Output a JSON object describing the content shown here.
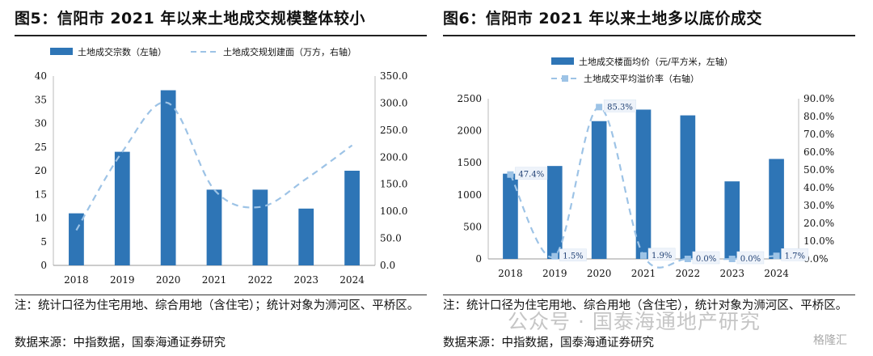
{
  "left_panel": {
    "title": "图5：信阳市 2021 年以来土地成交规模整体较小",
    "note": "注：统计口径为住宅用地、综合用地（含住宅）；统计对象为浉河区、平桥区。",
    "source": "数据来源：中指数据，国泰海通证券研究"
  },
  "right_panel": {
    "title": "图6：信阳市 2021 年以来土地多以底价成交",
    "note": "注：统计口径为住宅用地、综合用地（含住宅），统计对象为浉河区、平桥区。",
    "source": "数据来源：中指数据，国泰海通证券研究"
  },
  "watermark": {
    "text": "公众号 · 国泰海通地产研究",
    "brand": "格隆汇"
  },
  "colors": {
    "bar": "#2e75b6",
    "line": "#9dc3e6",
    "marker": "#9dc3e6"
  },
  "chart_data": [
    {
      "type": "bar",
      "categories": [
        "2018",
        "2019",
        "2020",
        "2021",
        "2022",
        "2023",
        "2024"
      ],
      "series": [
        {
          "name": "土地成交宗数（左轴）",
          "type": "bar",
          "axis": "left",
          "values": [
            11,
            24,
            37,
            16,
            16,
            12,
            20
          ]
        },
        {
          "name": "土地成交规划建面（万方，右轴）",
          "type": "line",
          "style": "dashed-smooth",
          "axis": "right",
          "values": [
            65,
            210,
            300,
            140,
            108,
            160,
            222
          ]
        }
      ],
      "y_left": {
        "min": 0,
        "max": 40,
        "step": 5,
        "ticks": [
          "0",
          "5",
          "10",
          "15",
          "20",
          "25",
          "30",
          "35",
          "40"
        ]
      },
      "y_right": {
        "min": 0,
        "max": 350,
        "step": 50,
        "ticks": [
          "0.0",
          "50.0",
          "100.0",
          "150.0",
          "200.0",
          "250.0",
          "300.0",
          "350.0"
        ]
      },
      "legend": "top",
      "grid": false
    },
    {
      "type": "bar",
      "categories": [
        "2018",
        "2019",
        "2020",
        "2021",
        "2022",
        "2023",
        "2024"
      ],
      "series": [
        {
          "name": "土地成交楼面均价（元/平方米，左轴）",
          "type": "bar",
          "axis": "left",
          "values": [
            1330,
            1450,
            2150,
            2330,
            2240,
            1210,
            1560
          ]
        },
        {
          "name": "土地成交平均溢价率（右轴）",
          "type": "line",
          "style": "dashed-smooth-markers",
          "axis": "right",
          "values": [
            47.4,
            1.5,
            85.3,
            1.9,
            0.0,
            0.0,
            1.7
          ],
          "labels": [
            "47.4%",
            "1.5%",
            "85.3%",
            "1.9%",
            "0.0%",
            "0.0%",
            "1.7%"
          ]
        }
      ],
      "y_left": {
        "min": 0,
        "max": 2500,
        "step": 500,
        "ticks": [
          "0",
          "500",
          "1000",
          "1500",
          "2000",
          "2500"
        ]
      },
      "y_right": {
        "min": 0,
        "max": 90,
        "step": 10,
        "ticks": [
          "0.0%",
          "10.0%",
          "20.0%",
          "30.0%",
          "40.0%",
          "50.0%",
          "60.0%",
          "70.0%",
          "80.0%",
          "90.0%"
        ]
      },
      "legend": "top",
      "grid": false
    }
  ]
}
